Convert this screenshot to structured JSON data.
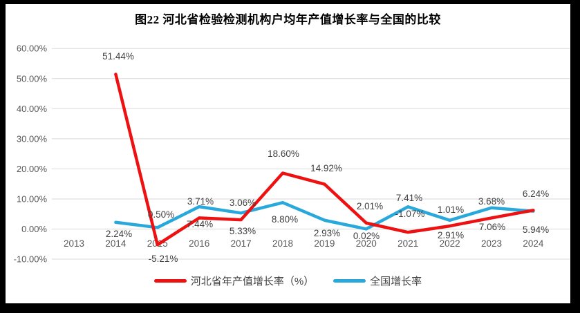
{
  "title": "图22 河北省检验检测机构户均年产值增长率与全国的比较",
  "chart_data": {
    "type": "line",
    "title": "图22 河北省检验检测机构户均年产值增长率与全国的比较",
    "categories": [
      "2013",
      "2014",
      "2015",
      "2016",
      "2017",
      "2018",
      "2019",
      "2020",
      "2021",
      "2022",
      "2023",
      "2024"
    ],
    "series": [
      {
        "name": "河北省年产值增长率（%）",
        "color": "#ee1111",
        "values": [
          null,
          51.44,
          -5.21,
          3.71,
          3.06,
          18.6,
          14.92,
          2.01,
          -1.07,
          1.01,
          3.68,
          6.24
        ],
        "labels": [
          "",
          "51.44%",
          "-5.21%",
          "3.71%",
          "3.06%",
          "18.60%",
          "14.92%",
          "2.01%",
          "-1.07%",
          "1.01%",
          "3.68%",
          "6.24%"
        ]
      },
      {
        "name": "全国增长率",
        "color": "#29a8dc",
        "values": [
          null,
          2.24,
          0.5,
          7.44,
          5.33,
          8.8,
          2.93,
          0.02,
          7.41,
          2.91,
          7.06,
          5.94
        ],
        "labels": [
          "",
          "2.24%",
          "0.50%",
          "7.44%",
          "5.33%",
          "8.80%",
          "2.93%",
          "0.02%",
          "7.41%",
          "2.91%",
          "7.06%",
          "5.94%"
        ]
      }
    ],
    "xlabel": "",
    "ylabel": "",
    "y_ticks": [
      "60.00%",
      "50.00%",
      "40.00%",
      "30.00%",
      "20.00%",
      "10.00%",
      "0.00%",
      "-10.00%"
    ],
    "ylim": [
      -10,
      60
    ],
    "grid": true,
    "legend_position": "bottom"
  },
  "legend": {
    "items": [
      {
        "label": "河北省年产值增长率（%）",
        "color": "#ee1111"
      },
      {
        "label": "全国增长率",
        "color": "#29a8dc"
      }
    ]
  },
  "colors": {
    "hebei_line": "#ee1111",
    "national_line": "#29a8dc",
    "gridline": "#d9d9d9",
    "axis_text": "#595959",
    "data_label_text": "#404040"
  }
}
